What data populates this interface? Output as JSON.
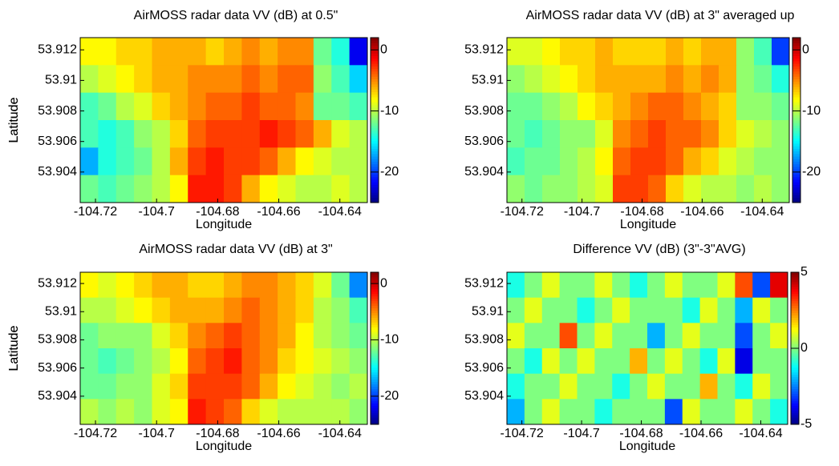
{
  "chart_data": [
    {
      "type": "heatmap",
      "title": "AirMOSS radar data VV (dB) at 0.5\"",
      "xlabel": "Longitude",
      "ylabel": "Latitude",
      "xlim": [
        -104.725,
        -104.631
      ],
      "xticks": [
        -104.72,
        -104.7,
        -104.68,
        -104.66,
        -104.64
      ],
      "ylim": [
        53.902,
        53.9128
      ],
      "yticks": [
        53.904,
        53.906,
        53.908,
        53.91,
        53.912
      ],
      "colormap": "jet",
      "clim": [
        -25,
        2
      ],
      "cticks": [
        -20,
        -10,
        0
      ],
      "z": [
        [
          -8,
          -8,
          -7,
          -7,
          -6,
          -6,
          -6,
          -7,
          -6,
          -5,
          -6,
          -5,
          -5,
          -12,
          -14,
          -22
        ],
        [
          -10,
          -9,
          -8,
          -7,
          -6,
          -6,
          -5,
          -5,
          -5,
          -4,
          -5,
          -4,
          -4,
          -11,
          -13,
          -16
        ],
        [
          -13,
          -12,
          -10,
          -9,
          -7,
          -6,
          -5,
          -4,
          -4,
          -3,
          -4,
          -4,
          -5,
          -12,
          -12,
          -13
        ],
        [
          -13,
          -14,
          -13,
          -11,
          -10,
          -7,
          -4,
          -3,
          -3,
          -3,
          -2,
          -3,
          -4,
          -6,
          -9,
          -10
        ],
        [
          -17,
          -14,
          -13,
          -12,
          -10,
          -6,
          -3,
          -2,
          -3,
          -3,
          -4,
          -6,
          -8,
          -9,
          -10,
          -10
        ],
        [
          -12,
          -13,
          -12,
          -11,
          -10,
          -8,
          -2,
          -2,
          -3,
          -6,
          -8,
          -9,
          -10,
          -10,
          -9,
          -10
        ]
      ]
    },
    {
      "type": "heatmap",
      "title": "AirMOSS radar data VV (dB) at 3\" averaged up",
      "xlabel": "Longitude",
      "ylabel": "Latitude",
      "xlim": [
        -104.725,
        -104.631
      ],
      "xticks": [
        -104.72,
        -104.7,
        -104.68,
        -104.66,
        -104.64
      ],
      "ylim": [
        53.902,
        53.9128
      ],
      "yticks": [
        53.904,
        53.906,
        53.908,
        53.91,
        53.912
      ],
      "colormap": "jet",
      "clim": [
        -25,
        2
      ],
      "cticks": [
        -20,
        -10,
        0
      ],
      "z": [
        [
          -9,
          -9,
          -8,
          -7,
          -7,
          -6,
          -7,
          -7,
          -7,
          -6,
          -7,
          -6,
          -6,
          -11,
          -13,
          -20
        ],
        [
          -11,
          -10,
          -9,
          -8,
          -7,
          -6,
          -6,
          -6,
          -6,
          -5,
          -6,
          -5,
          -6,
          -11,
          -12,
          -14
        ],
        [
          -12,
          -12,
          -11,
          -10,
          -8,
          -7,
          -6,
          -5,
          -4,
          -4,
          -5,
          -6,
          -7,
          -11,
          -11,
          -12
        ],
        [
          -12,
          -13,
          -12,
          -11,
          -11,
          -9,
          -5,
          -4,
          -3,
          -4,
          -4,
          -5,
          -7,
          -9,
          -10,
          -11
        ],
        [
          -13,
          -12,
          -12,
          -11,
          -10,
          -8,
          -4,
          -3,
          -3,
          -4,
          -6,
          -7,
          -9,
          -10,
          -11,
          -11
        ],
        [
          -11,
          -12,
          -11,
          -11,
          -10,
          -9,
          -3,
          -3,
          -4,
          -7,
          -9,
          -10,
          -10,
          -11,
          -10,
          -11
        ]
      ]
    },
    {
      "type": "heatmap",
      "title": "AirMOSS radar data VV (dB) at 3\"",
      "xlabel": "Longitude",
      "ylabel": "Latitude",
      "xlim": [
        -104.725,
        -104.631
      ],
      "xticks": [
        -104.72,
        -104.7,
        -104.68,
        -104.66,
        -104.64
      ],
      "ylim": [
        53.902,
        53.9128
      ],
      "yticks": [
        53.904,
        53.906,
        53.908,
        53.91,
        53.912
      ],
      "colormap": "jet",
      "clim": [
        -25,
        2
      ],
      "cticks": [
        -20,
        -10,
        0
      ],
      "z": [
        [
          -8,
          -9,
          -8,
          -7,
          -6,
          -6,
          -7,
          -7,
          -6,
          -5,
          -5,
          -6,
          -7,
          -9,
          -12,
          -18
        ],
        [
          -10,
          -10,
          -9,
          -8,
          -7,
          -6,
          -6,
          -6,
          -5,
          -4,
          -5,
          -6,
          -7,
          -10,
          -11,
          -13
        ],
        [
          -12,
          -11,
          -11,
          -11,
          -9,
          -7,
          -5,
          -4,
          -3,
          -4,
          -5,
          -6,
          -8,
          -10,
          -11,
          -12
        ],
        [
          -12,
          -13,
          -12,
          -11,
          -10,
          -8,
          -4,
          -3,
          -2,
          -4,
          -5,
          -7,
          -8,
          -9,
          -10,
          -11
        ],
        [
          -12,
          -12,
          -11,
          -11,
          -9,
          -7,
          -3,
          -3,
          -3,
          -4,
          -6,
          -8,
          -9,
          -10,
          -11,
          -10
        ],
        [
          -10,
          -11,
          -10,
          -11,
          -9,
          -8,
          -2,
          -3,
          -4,
          -7,
          -9,
          -10,
          -10,
          -10,
          -10,
          -11
        ]
      ]
    },
    {
      "type": "heatmap",
      "title": "Difference VV (dB) (3\"-3\"AVG)",
      "xlabel": "Longitude",
      "ylabel": "Latitude",
      "xlim": [
        -104.725,
        -104.631
      ],
      "xticks": [
        -104.72,
        -104.7,
        -104.68,
        -104.66,
        -104.64
      ],
      "ylim": [
        53.902,
        53.9128
      ],
      "yticks": [
        53.904,
        53.906,
        53.908,
        53.91,
        53.912
      ],
      "colormap": "jet",
      "clim": [
        -5,
        5
      ],
      "cticks": [
        -5,
        0,
        5
      ],
      "z": [
        [
          -1,
          0,
          1,
          0,
          0,
          1,
          0,
          -1,
          0,
          1,
          0,
          0,
          1,
          3,
          -3,
          4
        ],
        [
          0,
          1,
          0,
          0,
          -1,
          0,
          1,
          0,
          0,
          0,
          -1,
          1,
          0,
          -2,
          1,
          0
        ],
        [
          1,
          0,
          0,
          3,
          0,
          1,
          0,
          0,
          -2,
          0,
          1,
          0,
          0,
          -3,
          0,
          1
        ],
        [
          0,
          -1,
          1,
          0,
          1,
          0,
          0,
          2,
          0,
          1,
          0,
          -1,
          1,
          -4,
          0,
          0
        ],
        [
          -1,
          0,
          0,
          1,
          0,
          0,
          -1,
          0,
          1,
          0,
          0,
          2,
          0,
          -1,
          1,
          0
        ],
        [
          -2,
          0,
          1,
          0,
          0,
          -1,
          0,
          0,
          0,
          -3,
          1,
          0,
          0,
          1,
          0,
          -1
        ]
      ]
    }
  ]
}
